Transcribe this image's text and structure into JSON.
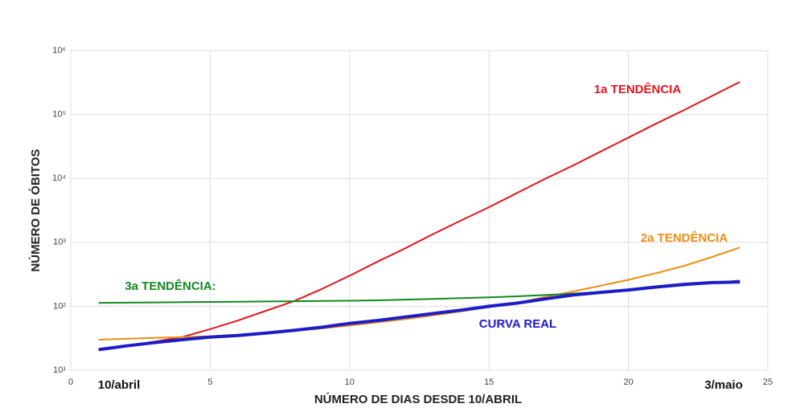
{
  "chart_data": {
    "type": "line",
    "xlabel": "NÚMERO DE DIAS DESDE 10/ABRIL",
    "ylabel": "NÚMERO DE ÓBITOS",
    "x": [
      1,
      2,
      3,
      4,
      5,
      6,
      7,
      8,
      9,
      10,
      11,
      12,
      13,
      14,
      15,
      16,
      17,
      18,
      19,
      20,
      21,
      22,
      23,
      24
    ],
    "series": [
      {
        "name": "1a TENDÊNCIA",
        "color": "#e3141e",
        "values": [
          21,
          24,
          28,
          33,
          44,
          60,
          85,
          120,
          186,
          300,
          500,
          810,
          1350,
          2200,
          3550,
          5900,
          9800,
          15800,
          26300,
          43600,
          72400,
          117500,
          195000,
          324000
        ]
      },
      {
        "name": "2a TENDÊNCIA",
        "color": "#ee8c12",
        "values": [
          30,
          31,
          32,
          33,
          34,
          36,
          38,
          41,
          45,
          50,
          56,
          63,
          72,
          83,
          97,
          113,
          140,
          170,
          210,
          260,
          330,
          430,
          590,
          830
        ]
      },
      {
        "name": "3a TENDÊNCIA:",
        "color": "#11891f",
        "values": [
          113,
          114,
          115,
          116,
          117,
          118,
          119,
          120,
          121,
          122,
          124,
          127,
          130,
          134,
          138,
          143,
          150,
          158,
          168,
          180,
          195,
          212,
          232,
          252
        ]
      },
      {
        "name": "CURVA REAL",
        "color": "#1c1cc8",
        "values": [
          21,
          24,
          27,
          30,
          33,
          35,
          38,
          42,
          47,
          54,
          60,
          68,
          77,
          87,
          100,
          112,
          130,
          150,
          165,
          180,
          200,
          220,
          235,
          240
        ]
      }
    ],
    "annotations": [
      "10/abril",
      "3/maio"
    ],
    "xlim": [
      0,
      25
    ],
    "xticks": [
      0,
      5,
      10,
      15,
      20,
      25
    ],
    "ylim": [
      10,
      1000000
    ],
    "yticks": [
      {
        "value": 10,
        "label": "10¹"
      },
      {
        "value": 100,
        "label": "10²"
      },
      {
        "value": 1000,
        "label": "10³"
      },
      {
        "value": 10000,
        "label": "10⁴"
      },
      {
        "value": 100000,
        "label": "10⁵"
      },
      {
        "value": 1000000,
        "label": "10⁶"
      }
    ],
    "ylog": true,
    "grid": true
  }
}
